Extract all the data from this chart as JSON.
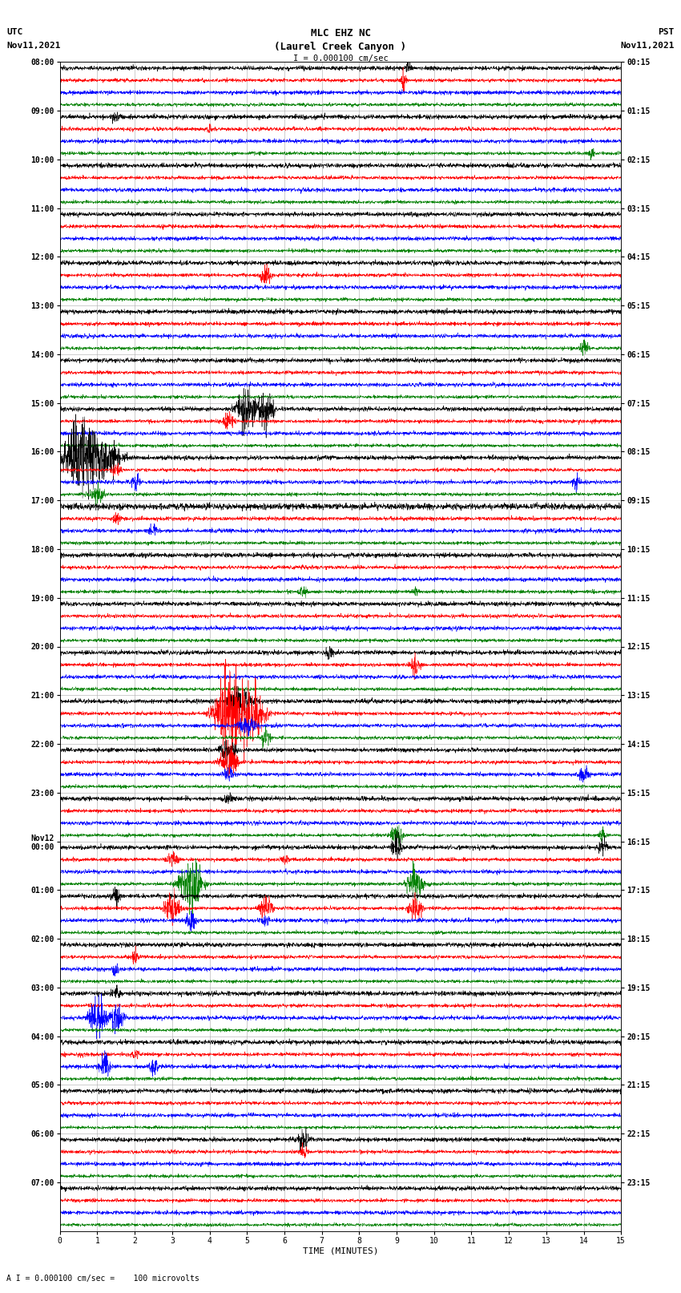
{
  "title_line1": "MLC EHZ NC",
  "title_line2": "(Laurel Creek Canyon )",
  "title_line3": "I = 0.000100 cm/sec",
  "left_header_line1": "UTC",
  "left_header_line2": "Nov11,2021",
  "right_header_line1": "PST",
  "right_header_line2": "Nov11,2021",
  "xlabel": "TIME (MINUTES)",
  "footer": "A I = 0.000100 cm/sec =    100 microvolts",
  "utc_labels": [
    "08:00",
    "09:00",
    "10:00",
    "11:00",
    "12:00",
    "13:00",
    "14:00",
    "15:00",
    "16:00",
    "17:00",
    "18:00",
    "19:00",
    "20:00",
    "21:00",
    "22:00",
    "23:00",
    "Nov12\n00:00",
    "01:00",
    "02:00",
    "03:00",
    "04:00",
    "05:00",
    "06:00",
    "07:00"
  ],
  "pst_labels": [
    "00:15",
    "01:15",
    "02:15",
    "03:15",
    "04:15",
    "05:15",
    "06:15",
    "07:15",
    "08:15",
    "09:15",
    "10:15",
    "11:15",
    "12:15",
    "13:15",
    "14:15",
    "15:15",
    "16:15",
    "17:15",
    "18:15",
    "19:15",
    "20:15",
    "21:15",
    "22:15",
    "23:15"
  ],
  "num_groups": 24,
  "traces_per_group": 4,
  "minutes": 15,
  "colors": [
    "black",
    "red",
    "blue",
    "green"
  ],
  "bg_color": "white",
  "plot_bg": "white",
  "seed": 12345,
  "noise_base": 0.25,
  "scale": 0.35
}
